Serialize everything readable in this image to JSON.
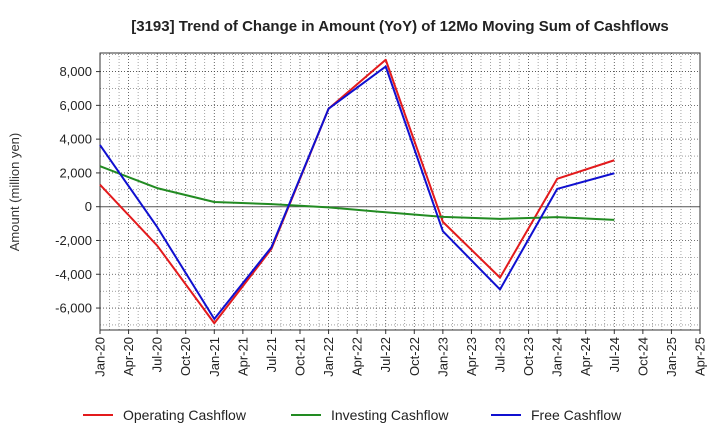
{
  "chart_data": {
    "type": "line",
    "title": "[3193]  Trend of Change in Amount (YoY) of 12Mo Moving Sum of Cashflows",
    "xlabel": "",
    "ylabel": "Amount (million yen)",
    "categories": [
      "Jan-20",
      "Apr-20",
      "Jul-20",
      "Oct-20",
      "Jan-21",
      "Apr-21",
      "Jul-21",
      "Oct-21",
      "Jan-22",
      "Apr-22",
      "Jul-22",
      "Oct-22",
      "Jan-23",
      "Apr-23",
      "Jul-23",
      "Oct-23",
      "Jan-24",
      "Apr-24",
      "Jul-24",
      "Oct-24",
      "Jan-25",
      "Apr-25"
    ],
    "yticks": [
      -6000,
      -4000,
      -2000,
      0,
      2000,
      4000,
      6000,
      8000
    ],
    "ytick_labels": [
      "-6,000",
      "-4,000",
      "-2,000",
      "0",
      "2,000",
      "4,000",
      "6,000",
      "8,000"
    ],
    "ylim": [
      -7300,
      9100
    ],
    "grid": true,
    "legend_position": "bottom",
    "series": [
      {
        "name": "Operating Cashflow",
        "color": "#e31a1c",
        "values": [
          1300,
          null,
          -2300,
          null,
          -6900,
          null,
          -2500,
          null,
          5800,
          null,
          8700,
          null,
          -900,
          null,
          -4200,
          null,
          1650,
          null,
          2750,
          null,
          null,
          null
        ]
      },
      {
        "name": "Investing Cashflow",
        "color": "#228b22",
        "values": [
          2400,
          null,
          1100,
          null,
          280,
          null,
          150,
          null,
          -40,
          null,
          -330,
          null,
          -600,
          null,
          -720,
          null,
          -620,
          null,
          -780,
          null,
          null,
          null
        ]
      },
      {
        "name": "Free Cashflow",
        "color": "#1010d0",
        "values": [
          3650,
          null,
          -1200,
          null,
          -6650,
          null,
          -2400,
          null,
          5800,
          null,
          8300,
          null,
          -1450,
          null,
          -4900,
          null,
          1050,
          null,
          1980,
          null,
          null,
          null
        ]
      }
    ]
  }
}
